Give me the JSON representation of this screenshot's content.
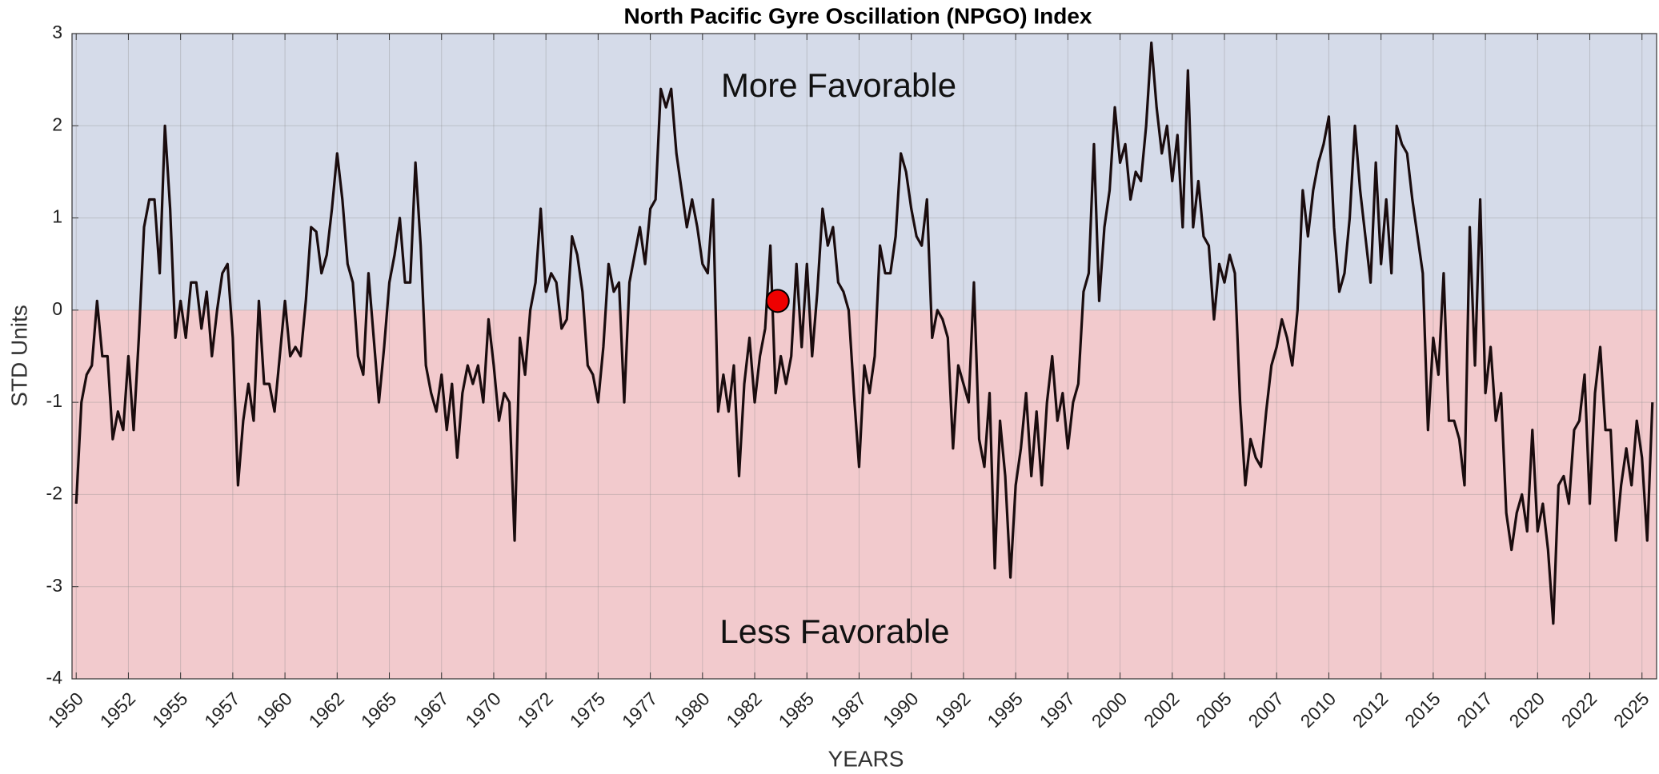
{
  "chart_data": {
    "type": "line",
    "title": "North Pacific Gyre Oscillation (NPGO) Index",
    "xlabel": "YEARS",
    "ylabel": "STD Units",
    "annotations": [
      "More Favorable",
      "Less Favorable"
    ],
    "threshold": 0,
    "above_color": "#d5dbe9",
    "below_color": "#f2cacd",
    "marker": {
      "x": 1983.6,
      "y": 0.1,
      "color": "#ee0000"
    },
    "xlim": [
      1949.8,
      2025.7
    ],
    "ylim": [
      -4,
      3
    ],
    "grid": true,
    "yticks": [
      -4,
      -3,
      -2,
      -1,
      0,
      1,
      2,
      3
    ],
    "xticks": [
      1950,
      {
        "value": 1952.5,
        "label": "1952"
      },
      1955,
      {
        "value": 1957.5,
        "label": "1957"
      },
      1960,
      {
        "value": 1962.5,
        "label": "1962"
      },
      1965,
      {
        "value": 1967.5,
        "label": "1967"
      },
      1970,
      {
        "value": 1972.5,
        "label": "1972"
      },
      1975,
      {
        "value": 1977.5,
        "label": "1977"
      },
      1980,
      {
        "value": 1982.5,
        "label": "1982"
      },
      1985,
      {
        "value": 1987.5,
        "label": "1987"
      },
      1990,
      {
        "value": 1992.5,
        "label": "1992"
      },
      1995,
      {
        "value": 1997.5,
        "label": "1997"
      },
      2000,
      {
        "value": 2002.5,
        "label": "2002"
      },
      2005,
      {
        "value": 2007.5,
        "label": "2007"
      },
      2010,
      {
        "value": 2012.5,
        "label": "2012"
      },
      2015,
      {
        "value": 2017.5,
        "label": "2017"
      },
      2020,
      {
        "value": 2022.5,
        "label": "2022"
      },
      2025
    ],
    "x": [
      1950,
      1950.25,
      1950.5,
      1950.75,
      1951,
      1951.25,
      1951.5,
      1951.75,
      1952,
      1952.25,
      1952.5,
      1952.75,
      1953,
      1953.25,
      1953.5,
      1953.75,
      1954,
      1954.25,
      1954.5,
      1954.75,
      1955,
      1955.25,
      1955.5,
      1955.75,
      1956,
      1956.25,
      1956.5,
      1956.75,
      1957,
      1957.25,
      1957.5,
      1957.75,
      1958,
      1958.25,
      1958.5,
      1958.75,
      1959,
      1959.25,
      1959.5,
      1959.75,
      1960,
      1960.25,
      1960.5,
      1960.75,
      1961,
      1961.25,
      1961.5,
      1961.75,
      1962,
      1962.25,
      1962.5,
      1962.75,
      1963,
      1963.25,
      1963.5,
      1963.75,
      1964,
      1964.25,
      1964.5,
      1964.75,
      1965,
      1965.25,
      1965.5,
      1965.75,
      1966,
      1966.25,
      1966.5,
      1966.75,
      1967,
      1967.25,
      1967.5,
      1967.75,
      1968,
      1968.25,
      1968.5,
      1968.75,
      1969,
      1969.25,
      1969.5,
      1969.75,
      1970,
      1970.25,
      1970.5,
      1970.75,
      1971,
      1971.25,
      1971.5,
      1971.75,
      1972,
      1972.25,
      1972.5,
      1972.75,
      1973,
      1973.25,
      1973.5,
      1973.75,
      1974,
      1974.25,
      1974.5,
      1974.75,
      1975,
      1975.25,
      1975.5,
      1975.75,
      1976,
      1976.25,
      1976.5,
      1976.75,
      1977,
      1977.25,
      1977.5,
      1977.75,
      1978,
      1978.25,
      1978.5,
      1978.75,
      1979,
      1979.25,
      1979.5,
      1979.75,
      1980,
      1980.25,
      1980.5,
      1980.75,
      1981,
      1981.25,
      1981.5,
      1981.75,
      1982,
      1982.25,
      1982.5,
      1982.75,
      1983,
      1983.25,
      1983.5,
      1983.75,
      1984,
      1984.25,
      1984.5,
      1984.75,
      1985,
      1985.25,
      1985.5,
      1985.75,
      1986,
      1986.25,
      1986.5,
      1986.75,
      1987,
      1987.25,
      1987.5,
      1987.75,
      1988,
      1988.25,
      1988.5,
      1988.75,
      1989,
      1989.25,
      1989.5,
      1989.75,
      1990,
      1990.25,
      1990.5,
      1990.75,
      1991,
      1991.25,
      1991.5,
      1991.75,
      1992,
      1992.25,
      1992.5,
      1992.75,
      1993,
      1993.25,
      1993.5,
      1993.75,
      1994,
      1994.25,
      1994.5,
      1994.75,
      1995,
      1995.25,
      1995.5,
      1995.75,
      1996,
      1996.25,
      1996.5,
      1996.75,
      1997,
      1997.25,
      1997.5,
      1997.75,
      1998,
      1998.25,
      1998.5,
      1998.75,
      1999,
      1999.25,
      1999.5,
      1999.75,
      2000,
      2000.25,
      2000.5,
      2000.75,
      2001,
      2001.25,
      2001.5,
      2001.75,
      2002,
      2002.25,
      2002.5,
      2002.75,
      2003,
      2003.25,
      2003.5,
      2003.75,
      2004,
      2004.25,
      2004.5,
      2004.75,
      2005,
      2005.25,
      2005.5,
      2005.75,
      2006,
      2006.25,
      2006.5,
      2006.75,
      2007,
      2007.25,
      2007.5,
      2007.75,
      2008,
      2008.25,
      2008.5,
      2008.75,
      2009,
      2009.25,
      2009.5,
      2009.75,
      2010,
      2010.25,
      2010.5,
      2010.75,
      2011,
      2011.25,
      2011.5,
      2011.75,
      2012,
      2012.25,
      2012.5,
      2012.75,
      2013,
      2013.25,
      2013.5,
      2013.75,
      2014,
      2014.25,
      2014.5,
      2014.75,
      2015,
      2015.25,
      2015.5,
      2015.75,
      2016,
      2016.25,
      2016.5,
      2016.75,
      2017,
      2017.25,
      2017.5,
      2017.75,
      2018,
      2018.25,
      2018.5,
      2018.75,
      2019,
      2019.25,
      2019.5,
      2019.75,
      2020,
      2020.25,
      2020.5,
      2020.75,
      2021,
      2021.25,
      2021.5,
      2021.75,
      2022,
      2022.25,
      2022.5,
      2022.75,
      2023,
      2023.25,
      2023.5,
      2023.75,
      2024,
      2024.25,
      2024.5,
      2024.75,
      2025,
      2025.25,
      2025.5
    ],
    "series": [
      {
        "name": "NPGO",
        "color": "#1a0c0e",
        "values": [
          -2.1,
          -1.0,
          -0.7,
          -0.6,
          0.1,
          -0.5,
          -0.5,
          -1.4,
          -1.1,
          -1.3,
          -0.5,
          -1.3,
          -0.3,
          0.9,
          1.2,
          1.2,
          0.4,
          2.0,
          1.1,
          -0.3,
          0.1,
          -0.3,
          0.3,
          0.3,
          -0.2,
          0.2,
          -0.5,
          0.0,
          0.4,
          0.5,
          -0.3,
          -1.9,
          -1.2,
          -0.8,
          -1.2,
          0.1,
          -0.8,
          -0.8,
          -1.1,
          -0.5,
          0.1,
          -0.5,
          -0.4,
          -0.5,
          0.1,
          0.9,
          0.85,
          0.4,
          0.6,
          1.1,
          1.7,
          1.2,
          0.5,
          0.3,
          -0.5,
          -0.7,
          0.4,
          -0.3,
          -1.0,
          -0.4,
          0.3,
          0.6,
          1.0,
          0.3,
          0.3,
          1.6,
          0.7,
          -0.6,
          -0.9,
          -1.1,
          -0.7,
          -1.3,
          -0.8,
          -1.6,
          -0.9,
          -0.6,
          -0.8,
          -0.6,
          -1.0,
          -0.1,
          -0.6,
          -1.2,
          -0.9,
          -1.0,
          -2.5,
          -0.3,
          -0.7,
          0.0,
          0.3,
          1.1,
          0.2,
          0.4,
          0.3,
          -0.2,
          -0.1,
          0.8,
          0.6,
          0.2,
          -0.6,
          -0.7,
          -1.0,
          -0.4,
          0.5,
          0.2,
          0.3,
          -1.0,
          0.3,
          0.6,
          0.9,
          0.5,
          1.1,
          1.2,
          2.4,
          2.2,
          2.4,
          1.7,
          1.3,
          0.9,
          1.2,
          0.9,
          0.5,
          0.4,
          1.2,
          -1.1,
          -0.7,
          -1.1,
          -0.6,
          -1.8,
          -0.8,
          -0.3,
          -1.0,
          -0.5,
          -0.2,
          0.7,
          -0.9,
          -0.5,
          -0.8,
          -0.5,
          0.5,
          -0.4,
          0.5,
          -0.5,
          0.2,
          1.1,
          0.7,
          0.9,
          0.3,
          0.2,
          0.0,
          -0.9,
          -1.7,
          -0.6,
          -0.9,
          -0.5,
          0.7,
          0.4,
          0.4,
          0.8,
          1.7,
          1.5,
          1.1,
          0.8,
          0.7,
          1.2,
          -0.3,
          0.0,
          -0.1,
          -0.3,
          -1.5,
          -0.6,
          -0.8,
          -1.0,
          0.3,
          -1.4,
          -1.7,
          -0.9,
          -2.8,
          -1.2,
          -1.8,
          -2.9,
          -1.9,
          -1.5,
          -0.9,
          -1.8,
          -1.1,
          -1.9,
          -1.0,
          -0.5,
          -1.2,
          -0.9,
          -1.5,
          -1.0,
          -0.8,
          0.2,
          0.4,
          1.8,
          0.1,
          0.9,
          1.3,
          2.2,
          1.6,
          1.8,
          1.2,
          1.5,
          1.4,
          2.0,
          2.9,
          2.2,
          1.7,
          2.0,
          1.4,
          1.9,
          0.9,
          2.6,
          0.9,
          1.4,
          0.8,
          0.7,
          -0.1,
          0.5,
          0.3,
          0.6,
          0.4,
          -1.0,
          -1.9,
          -1.4,
          -1.6,
          -1.7,
          -1.1,
          -0.6,
          -0.4,
          -0.1,
          -0.3,
          -0.6,
          0.0,
          1.3,
          0.8,
          1.3,
          1.6,
          1.8,
          2.1,
          0.9,
          0.2,
          0.4,
          1.0,
          2.0,
          1.3,
          0.8,
          0.3,
          1.6,
          0.5,
          1.2,
          0.4,
          2.0,
          1.8,
          1.7,
          1.2,
          0.8,
          0.4,
          -1.3,
          -0.3,
          -0.7,
          0.4,
          -1.2,
          -1.2,
          -1.4,
          -1.9,
          0.9,
          -0.6,
          1.2,
          -0.9,
          -0.4,
          -1.2,
          -0.9,
          -2.2,
          -2.6,
          -2.2,
          -2.0,
          -2.4,
          -1.3,
          -2.4,
          -2.1,
          -2.6,
          -3.4,
          -1.9,
          -1.8,
          -2.1,
          -1.3,
          -1.2,
          -0.7,
          -2.1,
          -0.9,
          -0.4,
          -1.3,
          -1.3,
          -2.5,
          -1.9,
          -1.5,
          -1.9,
          -1.2,
          -1.6,
          -2.5,
          -1.0
        ]
      }
    ]
  }
}
